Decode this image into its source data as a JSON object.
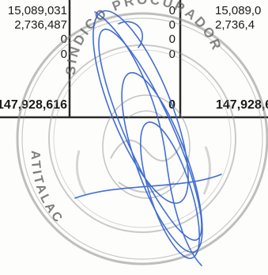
{
  "table": {
    "rows": [
      {
        "left": "15,089,031",
        "middle": "0",
        "right": "15,089,0",
        "bold": false
      },
      {
        "left": "2,736,487",
        "middle": "0",
        "right": "2,736,4",
        "bold": false
      },
      {
        "left": "0",
        "middle": "0",
        "right": "",
        "bold": false
      },
      {
        "left": "0",
        "middle": "0",
        "right": "",
        "bold": false
      },
      {
        "left": "147,928,616",
        "middle": "0",
        "right": "147,928,6",
        "bold": true
      }
    ]
  },
  "seal": {
    "top_text": "SINDICO PROCURADOR",
    "left_text": "ATITALAC",
    "ink_color": "#5f5f5f"
  },
  "signature": {
    "ink_color": "#2f5fcf"
  }
}
